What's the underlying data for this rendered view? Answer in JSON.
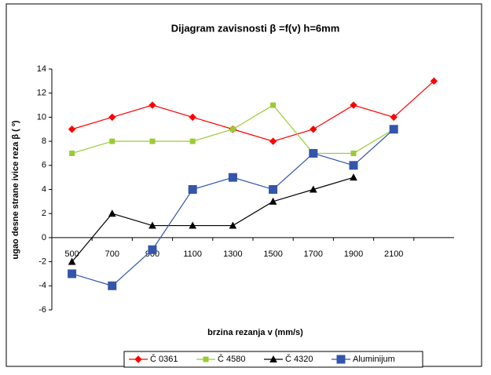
{
  "chart_data": {
    "type": "line",
    "title": "Dijagram zavisnosti β =f(v) h=6mm",
    "x_label": "brzina rezanja v (mm/s)",
    "y_label": "ugao desne strane ivice reza β ( º)",
    "categories": [
      "500",
      "700",
      "900",
      "1100",
      "1300",
      "1500",
      "1700",
      "1900",
      "2100",
      null
    ],
    "series": [
      {
        "name": "Č 0361",
        "color": "#ff0000",
        "marker": "diamond",
        "values": [
          9,
          10,
          11,
          10,
          9,
          8,
          9,
          11,
          10,
          13
        ]
      },
      {
        "name": "Č 4580",
        "color": "#99cc33",
        "marker": "square",
        "values": [
          7,
          8,
          8,
          8,
          9,
          11,
          7,
          7,
          9,
          null
        ]
      },
      {
        "name": "Č 4320",
        "color": "#000000",
        "marker": "triangle",
        "values": [
          -2,
          2,
          1,
          1,
          1,
          3,
          4,
          5,
          null,
          null
        ]
      },
      {
        "name": "Aluminijum",
        "color": "#3355aa",
        "marker": "bigsquare",
        "values": [
          -3,
          -4,
          -1,
          4,
          5,
          4,
          7,
          6,
          9,
          null
        ]
      }
    ],
    "ylim": [
      -6,
      14
    ],
    "yticks": [
      -6,
      -4,
      -2,
      0,
      2,
      4,
      6,
      8,
      10,
      12,
      14
    ],
    "legend": "bottom"
  }
}
